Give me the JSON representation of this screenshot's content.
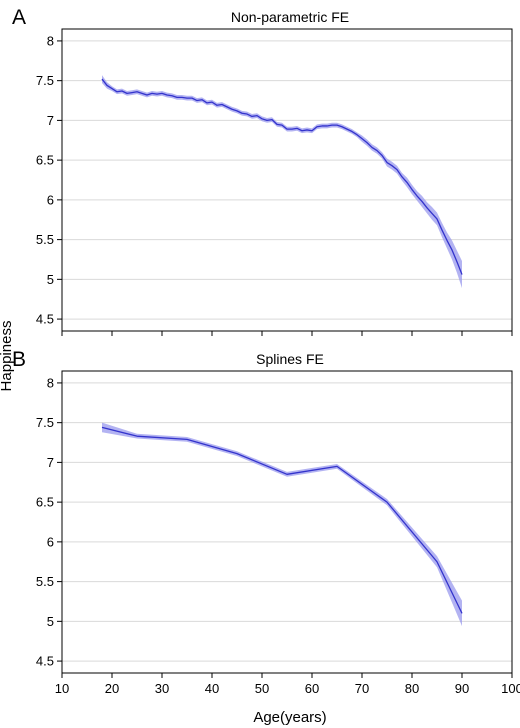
{
  "colors": {
    "line": "#3333cc",
    "band": "#9999ee",
    "grid": "#d9d9d9",
    "frame": "#000000"
  },
  "ylabel": "Happiness",
  "xlabel": "Age(years)",
  "chart_data": [
    {
      "type": "line",
      "panel_letter": "A",
      "title": "Non-parametric FE",
      "xlim": [
        10,
        100
      ],
      "ylim": [
        4.35,
        8.15
      ],
      "xticks": [
        "10",
        "20",
        "30",
        "40",
        "50",
        "60",
        "70",
        "80",
        "90",
        "100"
      ],
      "xtick_labels_shown": false,
      "yticks": [
        "4.5",
        "5",
        "5.5",
        "6",
        "6.5",
        "7",
        "7.5",
        "8"
      ],
      "grid": "horizontal",
      "series": [
        {
          "x": [
            18,
            19,
            20,
            21,
            22,
            23,
            24,
            25,
            26,
            27,
            28,
            29,
            30,
            31,
            32,
            33,
            34,
            35,
            36,
            37,
            38,
            39,
            40,
            41,
            42,
            43,
            44,
            45,
            46,
            47,
            48,
            49,
            50,
            51,
            52,
            53,
            54,
            55,
            56,
            57,
            58,
            59,
            60,
            61,
            62,
            63,
            64,
            65,
            66,
            67,
            68,
            69,
            70,
            71,
            72,
            73,
            74,
            75,
            76,
            77,
            78,
            79,
            80,
            81,
            82,
            83,
            84,
            85,
            86,
            87,
            88,
            89,
            90
          ],
          "y": [
            7.52,
            7.44,
            7.4,
            7.36,
            7.37,
            7.34,
            7.35,
            7.36,
            7.34,
            7.32,
            7.34,
            7.33,
            7.34,
            7.32,
            7.31,
            7.29,
            7.29,
            7.28,
            7.28,
            7.25,
            7.26,
            7.22,
            7.23,
            7.19,
            7.2,
            7.17,
            7.14,
            7.12,
            7.09,
            7.08,
            7.05,
            7.06,
            7.02,
            7.0,
            7.01,
            6.95,
            6.94,
            6.89,
            6.89,
            6.9,
            6.87,
            6.88,
            6.87,
            6.92,
            6.93,
            6.93,
            6.94,
            6.94,
            6.92,
            6.89,
            6.86,
            6.82,
            6.77,
            6.72,
            6.66,
            6.62,
            6.56,
            6.47,
            6.43,
            6.38,
            6.29,
            6.22,
            6.13,
            6.05,
            5.98,
            5.9,
            5.83,
            5.76,
            5.62,
            5.49,
            5.37,
            5.22,
            5.06
          ],
          "ci_halfwidth": [
            0.05,
            0.04,
            0.03,
            0.03,
            0.03,
            0.03,
            0.03,
            0.03,
            0.03,
            0.03,
            0.03,
            0.03,
            0.03,
            0.03,
            0.03,
            0.03,
            0.03,
            0.03,
            0.03,
            0.03,
            0.03,
            0.03,
            0.03,
            0.03,
            0.03,
            0.03,
            0.03,
            0.03,
            0.03,
            0.03,
            0.03,
            0.03,
            0.03,
            0.03,
            0.03,
            0.03,
            0.03,
            0.03,
            0.03,
            0.03,
            0.03,
            0.03,
            0.03,
            0.03,
            0.03,
            0.03,
            0.03,
            0.03,
            0.03,
            0.03,
            0.03,
            0.03,
            0.04,
            0.04,
            0.04,
            0.04,
            0.04,
            0.05,
            0.05,
            0.05,
            0.05,
            0.06,
            0.06,
            0.06,
            0.07,
            0.07,
            0.08,
            0.08,
            0.09,
            0.1,
            0.12,
            0.14,
            0.17
          ]
        }
      ]
    },
    {
      "type": "line",
      "panel_letter": "B",
      "title": "Splines FE",
      "xlim": [
        10,
        100
      ],
      "ylim": [
        4.35,
        8.15
      ],
      "xticks": [
        "10",
        "20",
        "30",
        "40",
        "50",
        "60",
        "70",
        "80",
        "90",
        "100"
      ],
      "xtick_labels_shown": true,
      "yticks": [
        "4.5",
        "5",
        "5.5",
        "6",
        "6.5",
        "7",
        "7.5",
        "8"
      ],
      "grid": "horizontal",
      "series": [
        {
          "x": [
            18,
            25,
            35,
            45,
            55,
            65,
            75,
            85,
            90
          ],
          "y": [
            7.44,
            7.33,
            7.29,
            7.11,
            6.85,
            6.95,
            6.5,
            5.75,
            5.1
          ],
          "ci_halfwidth": [
            0.06,
            0.03,
            0.03,
            0.03,
            0.03,
            0.03,
            0.04,
            0.07,
            0.16
          ]
        }
      ]
    }
  ]
}
